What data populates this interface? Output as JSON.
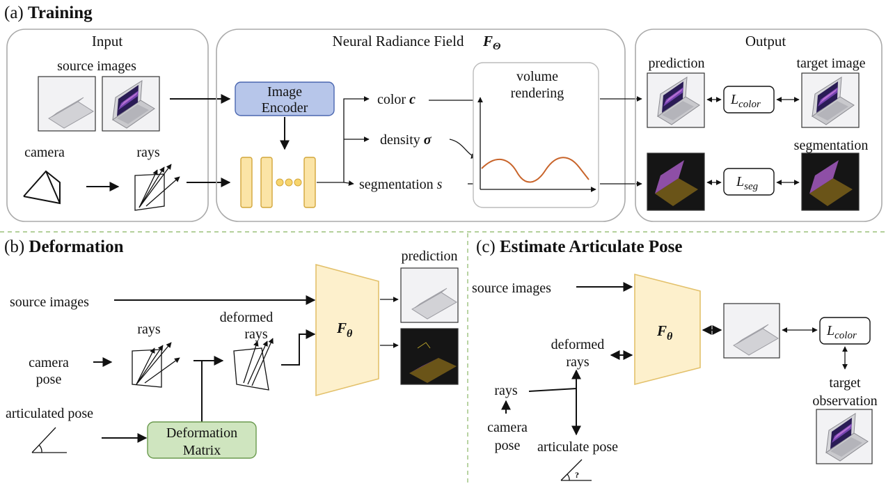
{
  "panel_a": {
    "label": "(a)",
    "title": "Training",
    "input": {
      "header": "Input",
      "source_images": "source images",
      "camera": "camera",
      "rays": "rays"
    },
    "nerf": {
      "header": "Neural Radiance Field",
      "symbol": "F",
      "symbol_sub": "Θ",
      "image_encoder_line1": "Image",
      "image_encoder_line2": "Encoder",
      "color_label": "color",
      "color_symbol": "c",
      "density_label": "density",
      "density_symbol": "σ",
      "segmentation_label": "segmentation",
      "segmentation_symbol": "s",
      "volume_rendering_line1": "volume",
      "volume_rendering_line2": "rendering"
    },
    "output": {
      "header": "Output",
      "prediction": "prediction",
      "target_image": "target image",
      "segmentation": "segmentation",
      "loss_color_main": "L",
      "loss_color_sub": "color",
      "loss_seg_main": "L",
      "loss_seg_sub": "seg"
    }
  },
  "panel_b": {
    "label": "(b)",
    "title": "Deformation",
    "source_images": "source images",
    "rays": "rays",
    "deformed_rays_line1": "deformed",
    "deformed_rays_line2": "rays",
    "camera_pose_line1": "camera",
    "camera_pose_line2": "pose",
    "articulated_pose": "articulated  pose",
    "deformation_matrix_line1": "Deformation",
    "deformation_matrix_line2": "Matrix",
    "f_symbol": "F",
    "f_sub": "θ",
    "prediction": "prediction"
  },
  "panel_c": {
    "label": "(c)",
    "title": "Estimate Articulate Pose",
    "source_images": "source images",
    "f_symbol": "F",
    "f_sub": "θ",
    "deformed_rays_line1": "deformed",
    "deformed_rays_line2": "rays",
    "rays": "rays",
    "camera_pose_line1": "camera",
    "camera_pose_line2": "pose",
    "articulate_pose": "articulate  pose",
    "question_mark": "?",
    "loss_main": "L",
    "loss_sub": "color",
    "target_observation_line1": "target",
    "target_observation_line2": "observation"
  },
  "colors": {
    "encoder_fill": "#b7c6ea",
    "encoder_stroke": "#4a66b0",
    "feature_fill": "#fbe4a6",
    "feature_stroke": "#d2a63a",
    "deform_fill": "#cfe5bf",
    "deform_stroke": "#6a9a4e",
    "f_fill": "#fdf0cc",
    "f_stroke": "#e3c16b",
    "curve": "#c8642a",
    "divider": "#9ac07a",
    "seg_purple": "#8e4fa6",
    "seg_brown": "#6a5418"
  }
}
